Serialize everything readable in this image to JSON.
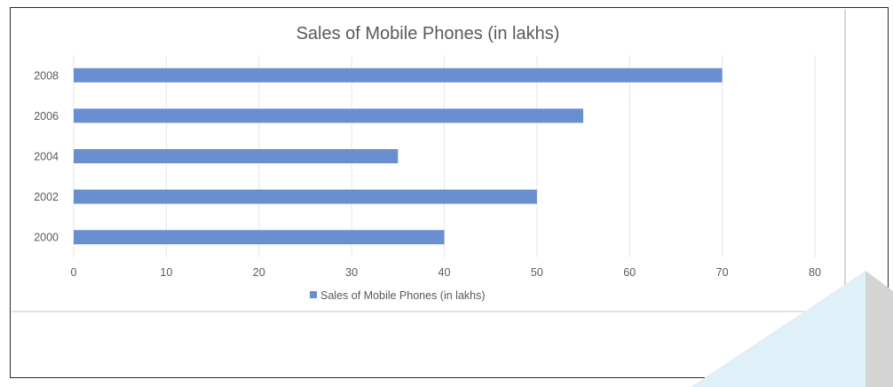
{
  "chart_data": {
    "type": "bar",
    "orientation": "horizontal",
    "title": "Sales of Mobile Phones (in lakhs)",
    "categories": [
      "2000",
      "2002",
      "2004",
      "2006",
      "2008"
    ],
    "series": [
      {
        "name": "Sales of Mobile Phones (in lakhs)",
        "values": [
          40,
          50,
          35,
          55,
          70
        ]
      }
    ],
    "xlim": [
      0,
      80
    ],
    "xticks": [
      "0",
      "10",
      "20",
      "30",
      "40",
      "50",
      "60",
      "70",
      "80"
    ],
    "grid": true,
    "legend": "bottom",
    "colors": {
      "bar": "#6a8fd0",
      "grid": "#e6e6e6",
      "text": "#595959"
    }
  }
}
